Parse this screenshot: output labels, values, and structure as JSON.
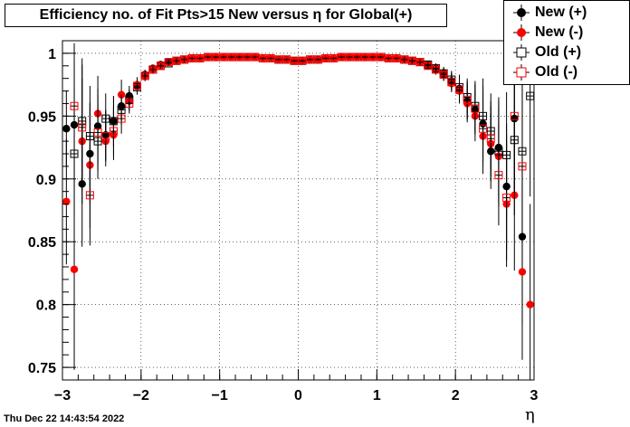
{
  "title": "Efficiency no. of Fit Pts>15 New versus  η for Global(+)",
  "timestamp": "Thu Dec 22 14:43:54 2022",
  "legend": [
    {
      "label": "New (+)",
      "marker": "filled-circle",
      "color": "#000000"
    },
    {
      "label": "New (-)",
      "marker": "filled-circle",
      "color": "#ff0000"
    },
    {
      "label": "Old (+)",
      "marker": "open-square",
      "color": "#000000"
    },
    {
      "label": "Old (-)",
      "marker": "open-square",
      "color": "#ff0000"
    }
  ],
  "chart_data": {
    "type": "scatter",
    "title": "Efficiency no. of Fit Pts>15 New versus  η for Global(+)",
    "xlabel": "η",
    "ylabel": "",
    "xlim": [
      -3,
      3
    ],
    "ylim": [
      0.74,
      1.01
    ],
    "xticks": [
      -3,
      -2,
      -1,
      0,
      1,
      2,
      3
    ],
    "xtick_labels": [
      "−3",
      "−2",
      "−1",
      "0",
      "1",
      "2",
      "3"
    ],
    "yticks": [
      0.75,
      0.8,
      0.85,
      0.9,
      0.95,
      1
    ],
    "ytick_labels": [
      "0.75",
      "0.8",
      "0.85",
      "0.9",
      "0.95",
      "1"
    ],
    "grid": true,
    "legend_position": "top-right",
    "series": [
      {
        "name": "New (+)",
        "marker": "filled-circle",
        "color": "#000000",
        "x": [
          -2.95,
          -2.85,
          -2.75,
          -2.65,
          -2.55,
          -2.45,
          -2.35,
          -2.25,
          -2.15,
          -2.05,
          -1.95,
          -1.85,
          -1.75,
          -1.65,
          -1.55,
          -1.45,
          -1.35,
          -1.25,
          -1.15,
          -1.05,
          -0.95,
          -0.85,
          -0.75,
          -0.65,
          -0.55,
          -0.45,
          -0.35,
          -0.25,
          -0.15,
          -0.05,
          0.05,
          0.15,
          0.25,
          0.35,
          0.45,
          0.55,
          0.65,
          0.75,
          0.85,
          0.95,
          1.05,
          1.15,
          1.25,
          1.35,
          1.45,
          1.55,
          1.65,
          1.75,
          1.85,
          1.95,
          2.05,
          2.15,
          2.25,
          2.35,
          2.45,
          2.55,
          2.65,
          2.75,
          2.85
        ],
        "y": [
          0.94,
          0.943,
          0.896,
          0.92,
          0.942,
          0.935,
          0.946,
          0.958,
          0.966,
          0.974,
          0.983,
          0.988,
          0.991,
          0.993,
          0.994,
          0.995,
          0.996,
          0.996,
          0.997,
          0.997,
          0.997,
          0.997,
          0.997,
          0.997,
          0.997,
          0.996,
          0.996,
          0.995,
          0.995,
          0.994,
          0.994,
          0.995,
          0.995,
          0.996,
          0.996,
          0.997,
          0.997,
          0.997,
          0.997,
          0.997,
          0.997,
          0.996,
          0.996,
          0.995,
          0.994,
          0.993,
          0.991,
          0.988,
          0.984,
          0.978,
          0.972,
          0.962,
          0.955,
          0.944,
          0.922,
          0.925,
          0.894,
          0.948,
          0.854
        ],
        "err": [
          0.03,
          0.05,
          0.05,
          0.04,
          0.03,
          0.02,
          0.02,
          0.012,
          0.008,
          0.006,
          0.004,
          0.003,
          0.002,
          0.002,
          0.002,
          0.002,
          0.001,
          0.001,
          0.001,
          0.001,
          0.001,
          0.001,
          0.001,
          0.001,
          0.001,
          0.001,
          0.001,
          0.001,
          0.001,
          0.001,
          0.001,
          0.001,
          0.001,
          0.001,
          0.001,
          0.001,
          0.001,
          0.001,
          0.001,
          0.001,
          0.001,
          0.001,
          0.001,
          0.002,
          0.002,
          0.002,
          0.003,
          0.004,
          0.005,
          0.007,
          0.01,
          0.015,
          0.02,
          0.03,
          0.03,
          0.04,
          0.05,
          0.06,
          0.07
        ]
      },
      {
        "name": "New (-)",
        "marker": "filled-circle",
        "color": "#ff0000",
        "x": [
          -2.95,
          -2.85,
          -2.75,
          -2.65,
          -2.55,
          -2.45,
          -2.35,
          -2.25,
          -2.15,
          -2.05,
          -1.95,
          -1.85,
          -1.75,
          -1.65,
          -1.55,
          -1.45,
          -1.35,
          -1.25,
          -1.15,
          -1.05,
          -0.95,
          -0.85,
          -0.75,
          -0.65,
          -0.55,
          -0.45,
          -0.35,
          -0.25,
          -0.15,
          -0.05,
          0.05,
          0.15,
          0.25,
          0.35,
          0.45,
          0.55,
          0.65,
          0.75,
          0.85,
          0.95,
          1.05,
          1.15,
          1.25,
          1.35,
          1.45,
          1.55,
          1.65,
          1.75,
          1.85,
          1.95,
          2.05,
          2.15,
          2.25,
          2.35,
          2.45,
          2.55,
          2.65,
          2.75,
          2.85,
          2.95
        ],
        "y": [
          0.882,
          0.828,
          0.93,
          0.911,
          0.952,
          0.93,
          0.935,
          0.967,
          0.962,
          0.975,
          0.982,
          0.987,
          0.99,
          0.993,
          0.994,
          0.995,
          0.996,
          0.996,
          0.997,
          0.997,
          0.997,
          0.997,
          0.997,
          0.997,
          0.997,
          0.996,
          0.996,
          0.995,
          0.995,
          0.994,
          0.994,
          0.995,
          0.995,
          0.996,
          0.996,
          0.997,
          0.997,
          0.997,
          0.997,
          0.997,
          0.997,
          0.996,
          0.996,
          0.995,
          0.994,
          0.993,
          0.99,
          0.987,
          0.983,
          0.976,
          0.97,
          0.96,
          0.95,
          0.934,
          0.928,
          0.918,
          0.88,
          0.887,
          0.826,
          0.8
        ],
        "err": [
          0.05,
          0.08,
          0.05,
          0.05,
          0.03,
          0.02,
          0.02,
          0.012,
          0.008,
          0.006,
          0.004,
          0.003,
          0.002,
          0.002,
          0.002,
          0.002,
          0.001,
          0.001,
          0.001,
          0.001,
          0.001,
          0.001,
          0.001,
          0.001,
          0.001,
          0.001,
          0.001,
          0.001,
          0.001,
          0.001,
          0.001,
          0.001,
          0.001,
          0.001,
          0.001,
          0.001,
          0.001,
          0.001,
          0.001,
          0.001,
          0.001,
          0.001,
          0.001,
          0.002,
          0.002,
          0.002,
          0.003,
          0.004,
          0.005,
          0.007,
          0.01,
          0.015,
          0.02,
          0.03,
          0.03,
          0.04,
          0.05,
          0.06,
          0.07,
          0.08
        ]
      },
      {
        "name": "Old (+)",
        "marker": "open-square",
        "color": "#000000",
        "x": [
          -2.85,
          -2.75,
          -2.65,
          -2.55,
          -2.45,
          -2.35,
          -2.25,
          -2.15,
          -2.05,
          -1.95,
          -1.85,
          -1.75,
          -1.65,
          -1.55,
          -1.45,
          -1.35,
          -1.25,
          -1.15,
          -1.05,
          -0.95,
          -0.85,
          -0.75,
          -0.65,
          -0.55,
          -0.45,
          -0.35,
          -0.25,
          -0.15,
          -0.05,
          0.05,
          0.15,
          0.25,
          0.35,
          0.45,
          0.55,
          0.65,
          0.75,
          0.85,
          0.95,
          1.05,
          1.15,
          1.25,
          1.35,
          1.45,
          1.55,
          1.65,
          1.75,
          1.85,
          1.95,
          2.05,
          2.15,
          2.25,
          2.35,
          2.45,
          2.55,
          2.65,
          2.75,
          2.85,
          2.95
        ],
        "y": [
          0.92,
          0.946,
          0.934,
          0.93,
          0.948,
          0.946,
          0.955,
          0.963,
          0.973,
          0.982,
          0.987,
          0.99,
          0.992,
          0.994,
          0.995,
          0.996,
          0.996,
          0.997,
          0.997,
          0.997,
          0.997,
          0.997,
          0.997,
          0.997,
          0.996,
          0.996,
          0.995,
          0.995,
          0.994,
          0.994,
          0.995,
          0.995,
          0.996,
          0.996,
          0.997,
          0.997,
          0.997,
          0.997,
          0.997,
          0.997,
          0.996,
          0.996,
          0.995,
          0.994,
          0.993,
          0.991,
          0.988,
          0.984,
          0.979,
          0.973,
          0.965,
          0.958,
          0.95,
          0.938,
          0.922,
          0.919,
          0.931,
          0.922,
          0.966
        ],
        "err": [
          0.05,
          0.05,
          0.04,
          0.03,
          0.02,
          0.02,
          0.012,
          0.008,
          0.006,
          0.004,
          0.003,
          0.002,
          0.002,
          0.002,
          0.002,
          0.001,
          0.001,
          0.001,
          0.001,
          0.001,
          0.001,
          0.001,
          0.001,
          0.001,
          0.001,
          0.001,
          0.001,
          0.001,
          0.001,
          0.001,
          0.001,
          0.001,
          0.001,
          0.001,
          0.001,
          0.001,
          0.001,
          0.001,
          0.001,
          0.001,
          0.001,
          0.001,
          0.002,
          0.002,
          0.002,
          0.003,
          0.004,
          0.005,
          0.007,
          0.01,
          0.015,
          0.02,
          0.03,
          0.03,
          0.04,
          0.05,
          0.06,
          0.07,
          0.08
        ]
      },
      {
        "name": "Old (-)",
        "marker": "open-square",
        "color": "#ff0000",
        "x": [
          -2.85,
          -2.75,
          -2.65,
          -2.55,
          -2.45,
          -2.35,
          -2.25,
          -2.15,
          -2.05,
          -1.95,
          -1.85,
          -1.75,
          -1.65,
          -1.55,
          -1.45,
          -1.35,
          -1.25,
          -1.15,
          -1.05,
          -0.95,
          -0.85,
          -0.75,
          -0.65,
          -0.55,
          -0.45,
          -0.35,
          -0.25,
          -0.15,
          -0.05,
          0.05,
          0.15,
          0.25,
          0.35,
          0.45,
          0.55,
          0.65,
          0.75,
          0.85,
          0.95,
          1.05,
          1.15,
          1.25,
          1.35,
          1.45,
          1.55,
          1.65,
          1.75,
          1.85,
          1.95,
          2.05,
          2.15,
          2.25,
          2.35,
          2.45,
          2.55,
          2.65,
          2.75,
          2.85
        ],
        "y": [
          0.958,
          0.941,
          0.887,
          0.937,
          0.934,
          0.938,
          0.948,
          0.96,
          0.974,
          0.982,
          0.987,
          0.99,
          0.993,
          0.994,
          0.995,
          0.996,
          0.996,
          0.997,
          0.997,
          0.997,
          0.997,
          0.997,
          0.997,
          0.997,
          0.996,
          0.996,
          0.995,
          0.995,
          0.994,
          0.994,
          0.995,
          0.995,
          0.996,
          0.996,
          0.997,
          0.997,
          0.997,
          0.997,
          0.997,
          0.997,
          0.996,
          0.996,
          0.995,
          0.994,
          0.993,
          0.99,
          0.987,
          0.983,
          0.977,
          0.971,
          0.963,
          0.956,
          0.94,
          0.932,
          0.903,
          0.885,
          0.95,
          0.91
        ],
        "err": [
          0.05,
          0.05,
          0.04,
          0.03,
          0.02,
          0.02,
          0.012,
          0.008,
          0.006,
          0.004,
          0.003,
          0.002,
          0.002,
          0.002,
          0.002,
          0.001,
          0.001,
          0.001,
          0.001,
          0.001,
          0.001,
          0.001,
          0.001,
          0.001,
          0.001,
          0.001,
          0.001,
          0.001,
          0.001,
          0.001,
          0.001,
          0.001,
          0.001,
          0.001,
          0.001,
          0.001,
          0.001,
          0.001,
          0.001,
          0.001,
          0.001,
          0.001,
          0.002,
          0.002,
          0.002,
          0.003,
          0.004,
          0.005,
          0.007,
          0.01,
          0.015,
          0.02,
          0.03,
          0.03,
          0.04,
          0.05,
          0.06,
          0.07
        ]
      }
    ]
  }
}
